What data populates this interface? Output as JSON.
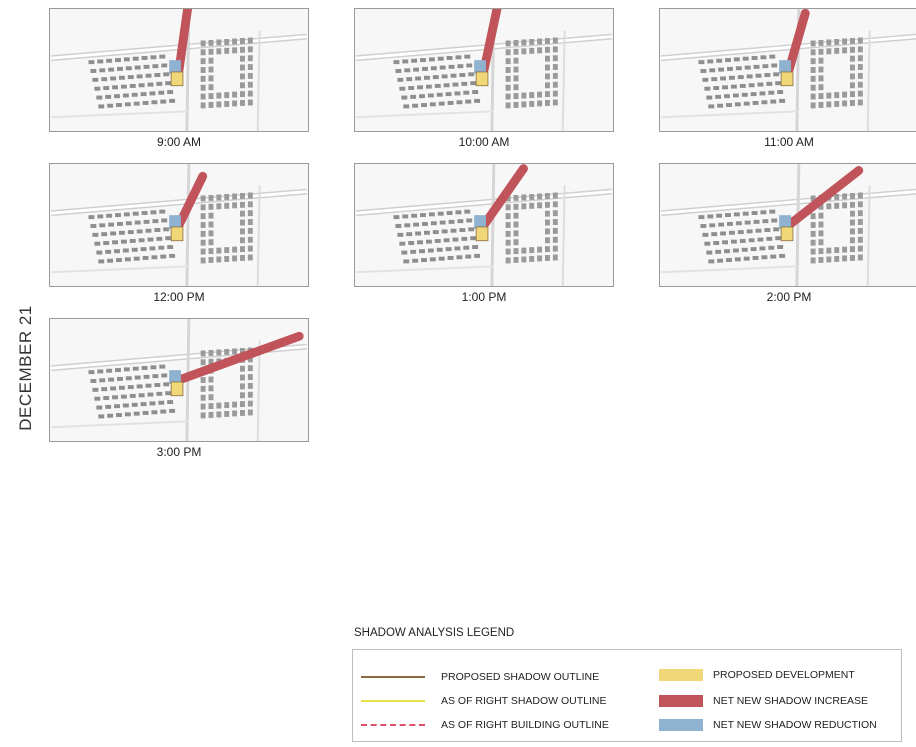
{
  "side_label": "DECEMBER 21",
  "panels": [
    {
      "time": "9:00 AM"
    },
    {
      "time": "10:00 AM"
    },
    {
      "time": "11:00 AM"
    },
    {
      "time": "12:00 PM"
    },
    {
      "time": "1:00 PM"
    },
    {
      "time": "2:00 PM"
    },
    {
      "time": "3:00 PM"
    }
  ],
  "legend": {
    "title": "SHADOW ANALYSIS LEGEND",
    "items": [
      {
        "label": "PROPOSED SHADOW OUTLINE",
        "color": "#8b6a3e",
        "style": "line-solid"
      },
      {
        "label": "AS OF RIGHT SHADOW OUTLINE",
        "color": "#e8e34a",
        "style": "line-solid"
      },
      {
        "label": "AS OF RIGHT BUILDING OUTLINE",
        "color": "#e0506a",
        "style": "line-dashed"
      },
      {
        "label": "PROPOSED DEVELOPMENT",
        "color": "#f0d878",
        "style": "fill"
      },
      {
        "label": "NET NEW SHADOW INCREASE",
        "color": "#c0545a",
        "style": "fill"
      },
      {
        "label": "NET NEW SHADOW REDUCTION",
        "color": "#8fb2d0",
        "style": "fill"
      }
    ]
  }
}
